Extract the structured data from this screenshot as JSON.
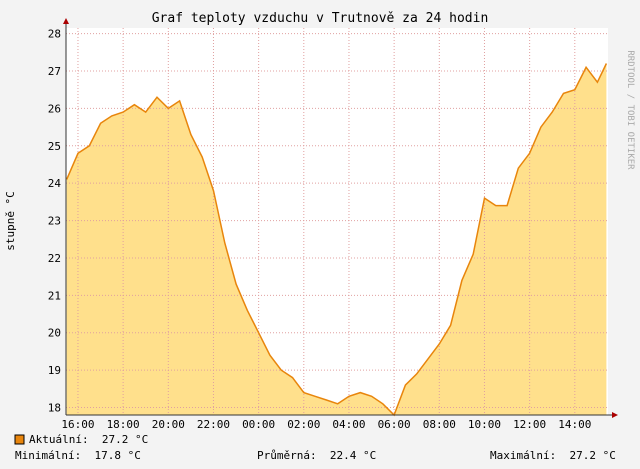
{
  "chart_data": {
    "type": "area",
    "title": "Graf teploty vzduchu v Trutnově za 24 hodin",
    "y_label": "stupně °C",
    "watermark": "RRDTOOL / TOBI OETIKER",
    "x": [
      15.5,
      16,
      16.5,
      17,
      17.5,
      18,
      18.5,
      19,
      19.5,
      20,
      20.5,
      21,
      21.5,
      22,
      22.5,
      23,
      23.5,
      24,
      24.5,
      25,
      25.5,
      26,
      26.5,
      27,
      27.5,
      28,
      28.5,
      29,
      29.5,
      30,
      30.5,
      31,
      31.5,
      32,
      32.5,
      33,
      33.5,
      34,
      34.5,
      35,
      35.5,
      36,
      36.5,
      37,
      37.5,
      38,
      38.5,
      39,
      39.4
    ],
    "series": [
      {
        "name": "Aktuální:  27.2 °C",
        "color": "#e8850c",
        "fill": "#ffe08c",
        "values": [
          24.1,
          24.8,
          25.0,
          25.6,
          25.8,
          25.9,
          26.1,
          25.9,
          26.3,
          26.0,
          26.2,
          25.3,
          24.7,
          23.8,
          22.4,
          21.3,
          20.6,
          20.0,
          19.4,
          19.0,
          18.8,
          18.4,
          18.3,
          18.2,
          18.1,
          18.3,
          18.4,
          18.3,
          18.1,
          17.8,
          18.6,
          18.9,
          19.3,
          19.7,
          20.2,
          21.4,
          22.1,
          23.6,
          23.4,
          23.4,
          24.4,
          24.8,
          25.5,
          25.9,
          26.4,
          26.5,
          27.1,
          26.7,
          27.2
        ]
      }
    ],
    "xlim": [
      15.47,
      39.47
    ],
    "xticks": [
      {
        "value": 16,
        "label": "16:00"
      },
      {
        "value": 18,
        "label": "18:00"
      },
      {
        "value": 20,
        "label": "20:00"
      },
      {
        "value": 22,
        "label": "22:00"
      },
      {
        "value": 24,
        "label": "00:00"
      },
      {
        "value": 26,
        "label": "02:00"
      },
      {
        "value": 28,
        "label": "04:00"
      },
      {
        "value": 30,
        "label": "06:00"
      },
      {
        "value": 32,
        "label": "08:00"
      },
      {
        "value": 34,
        "label": "10:00"
      },
      {
        "value": 36,
        "label": "12:00"
      },
      {
        "value": 38,
        "label": "14:00"
      }
    ],
    "ylim": [
      17.8,
      28.15
    ],
    "yticks": [
      18,
      19,
      20,
      21,
      22,
      23,
      24,
      25,
      26,
      27,
      28
    ],
    "grid": true,
    "stats": [
      "Minimální:  17.8 °C",
      "Průměrná:  22.4 °C",
      "Maximální:  27.2 °C"
    ]
  }
}
